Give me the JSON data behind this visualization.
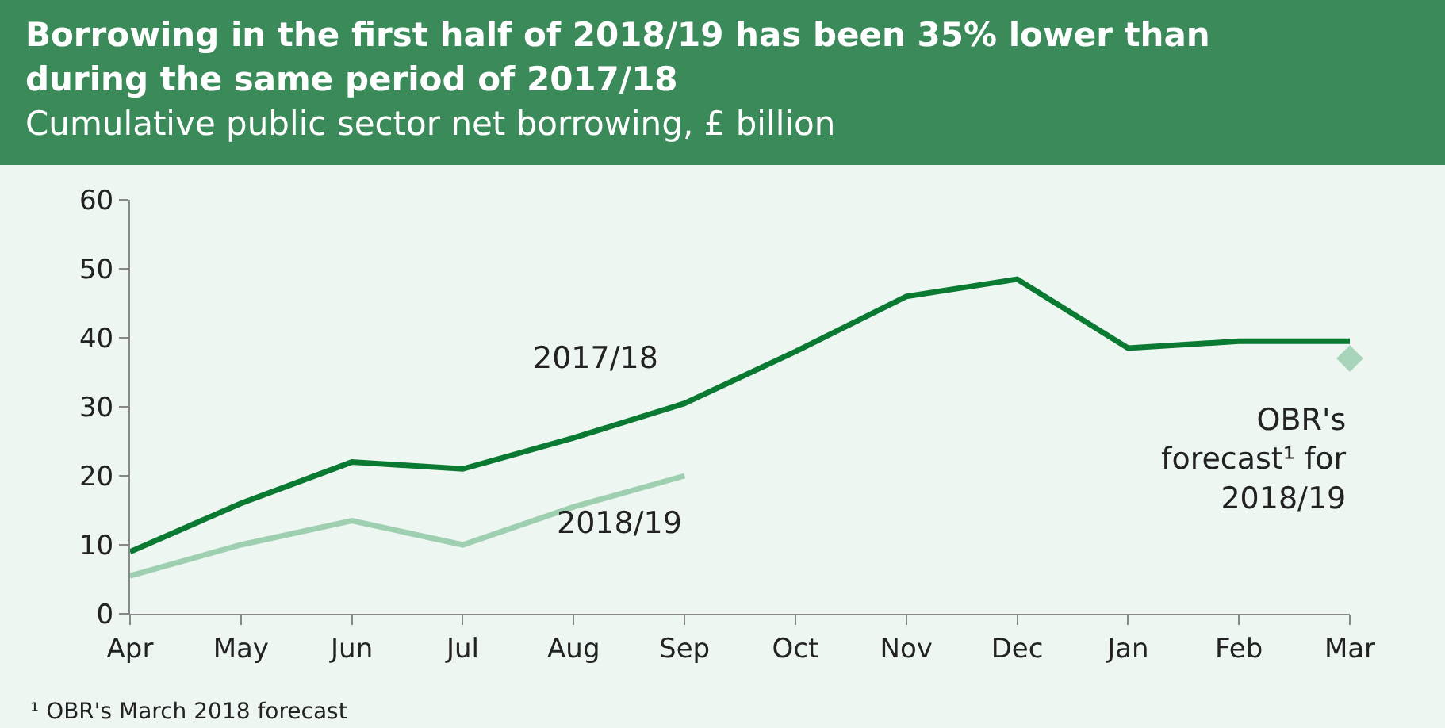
{
  "chart_data": {
    "type": "line",
    "title": "Borrowing in the first half of 2018/19 has been 35% lower than during the same period of 2017/18",
    "subtitle": "Cumulative public sector net borrowing, £ billion",
    "categories": [
      "Apr",
      "May",
      "Jun",
      "Jul",
      "Aug",
      "Sep",
      "Oct",
      "Nov",
      "Dec",
      "Jan",
      "Feb",
      "Mar"
    ],
    "series": [
      {
        "name": "2017/18",
        "color": "#0a7a32",
        "values": [
          9,
          16,
          22,
          21,
          25.5,
          30.5,
          38,
          46,
          48.5,
          38.5,
          39.5,
          39.5
        ]
      },
      {
        "name": "2018/19",
        "color": "#9ecfb0",
        "values": [
          5.5,
          10,
          13.5,
          10,
          15.5,
          20,
          null,
          null,
          null,
          null,
          null,
          null
        ]
      },
      {
        "name": "OBR's forecast¹ for 2018/19",
        "type": "scatter",
        "marker": "diamond",
        "color": "#a8d5ba",
        "values": [
          null,
          null,
          null,
          null,
          null,
          null,
          null,
          null,
          null,
          null,
          null,
          37
        ]
      }
    ],
    "ylim": [
      0,
      60
    ],
    "yticks": [
      0,
      10,
      20,
      30,
      40,
      50,
      60
    ],
    "grid": false,
    "legend": false,
    "marker": "none",
    "line_style": "solid",
    "annotations": [
      "¹ OBR's March 2018 forecast"
    ]
  }
}
